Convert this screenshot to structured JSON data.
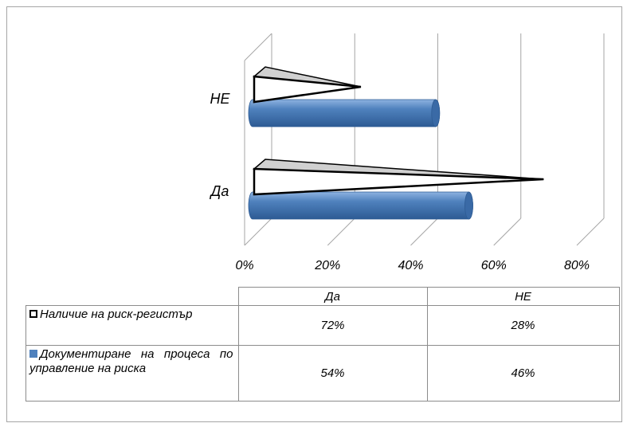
{
  "chart_data": {
    "type": "bar",
    "orientation": "horizontal",
    "style": "3d",
    "categories": [
      "Да",
      "НЕ"
    ],
    "series": [
      {
        "name": "Наличие на риск-регистър",
        "values": [
          72,
          28
        ],
        "shape": "pyramid",
        "color": "#ffffff",
        "display": [
          "72%",
          "28%"
        ]
      },
      {
        "name": "Документиране на процеса по управление на риска",
        "values": [
          54,
          46
        ],
        "shape": "cylinder",
        "color": "#4f81bd",
        "display": [
          "54%",
          "46%"
        ]
      }
    ],
    "x_ticks": [
      "0%",
      "20%",
      "40%",
      "60%",
      "80%"
    ],
    "xlim": [
      0,
      80
    ],
    "grid": true,
    "legend": "data-table"
  }
}
